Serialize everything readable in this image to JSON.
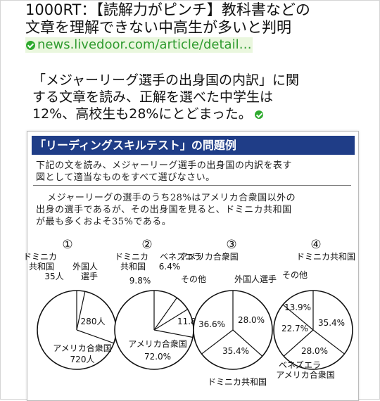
{
  "tweet": {
    "title_line1": "1000RT：【読解力がピンチ】教科書などの",
    "title_line2": "文章を理解できない中高生が多いと判明",
    "link_text": "news.livedoor.com/article/detail…",
    "body_line1": "「メジャーリーグ選手の出身国の内訳」に関",
    "body_line2": "する文章を読み、正解を選べた中学生は",
    "body_line3": "12%、高校生も28%にとどまった。"
  },
  "quiz": {
    "header": "「リーディングスキルテスト」の問題例",
    "question_line1": "下記の文を読み、メジャーリーグ選手の出身国の内訳を表す",
    "question_line2": "図として適当なものをすべて選びなさい。",
    "passage_line1": "メジャーリーグの選手のうち28%はアメリカ合衆国以外の",
    "passage_line2": "出身の選手であるが、その出身国を見ると、ドミニカ共和国",
    "passage_line3": "が最も多くおよそ35%である。"
  },
  "chart_data": [
    {
      "type": "pie",
      "title": "①",
      "slices": [
        {
          "label": "ドミニカ共和国",
          "value_text": "35人",
          "value": 35
        },
        {
          "label": "外国人選手",
          "value_text": "280人",
          "value": 280
        },
        {
          "label": "アメリカ合衆国",
          "value_text": "720人",
          "value": 720
        }
      ]
    },
    {
      "type": "pie",
      "title": "②",
      "slices": [
        {
          "label": "ドミニカ共和国",
          "value_text": "9.8%",
          "value": 9.8
        },
        {
          "label": "ベネズエラ",
          "value_text": "6.4%",
          "value": 6.4
        },
        {
          "label": "その他",
          "value_text": "11.8%",
          "value": 11.8
        },
        {
          "label": "アメリカ合衆国",
          "value_text": "72.0%",
          "value": 72.0
        }
      ]
    },
    {
      "type": "pie",
      "title": "③",
      "slices": [
        {
          "label": "アメリカ合衆国",
          "value_text": "36.6%",
          "value": 36.6
        },
        {
          "label": "外国人選手",
          "value_text": "28.0%",
          "value": 28.0
        },
        {
          "label": "ドミニカ共和国",
          "value_text": "35.4%",
          "value": 35.4
        }
      ]
    },
    {
      "type": "pie",
      "title": "④",
      "slices": [
        {
          "label": "ドミニカ共和国",
          "value_text": "35.4%",
          "value": 35.4
        },
        {
          "label": "アメリカ合衆国",
          "value_text": "28.0%",
          "value": 28.0
        },
        {
          "label": "ベネズエラ",
          "value_text": "22.7%",
          "value": 22.7
        },
        {
          "label": "その他",
          "value_text": "13.9%",
          "value": 13.9
        }
      ]
    }
  ],
  "colors": {
    "header_bg": "#1f3d87",
    "link": "#2f9b2f",
    "verified_check": "#2eaa2e"
  }
}
